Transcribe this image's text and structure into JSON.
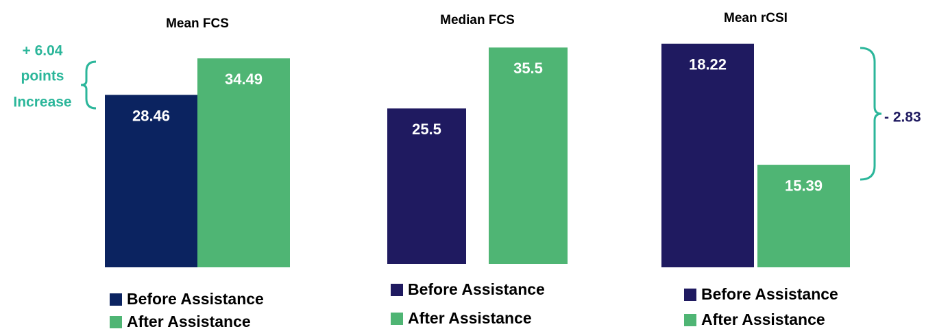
{
  "chart_data": [
    {
      "type": "bar",
      "title": "Mean FCS",
      "ylim": [
        0,
        39.6
      ],
      "series": [
        {
          "name": "Before Assistance",
          "color": "#0b2360",
          "values": [
            28.46
          ]
        },
        {
          "name": "After Assistance",
          "color": "#4fb574",
          "values": [
            34.49
          ]
        }
      ],
      "annotation": [
        "+ 6.04",
        "points",
        "Increase"
      ]
    },
    {
      "type": "bar",
      "title": "Median FCS",
      "ylim": [
        0,
        38.8
      ],
      "series": [
        {
          "name": "Before Assistance",
          "color": "#1f1a60",
          "values": [
            25.5
          ]
        },
        {
          "name": "After Assistance",
          "color": "#4fb574",
          "values": [
            35.5
          ]
        }
      ]
    },
    {
      "type": "bar",
      "title": "Mean rCSI",
      "ylim": [
        13,
        18.6
      ],
      "series": [
        {
          "name": "Before Assistance",
          "color": "#1f1a60",
          "values": [
            18.22
          ]
        },
        {
          "name": "After Assistance",
          "color": "#4fb574",
          "values": [
            15.39
          ]
        }
      ],
      "annotation": [
        "- 2.83"
      ]
    }
  ]
}
